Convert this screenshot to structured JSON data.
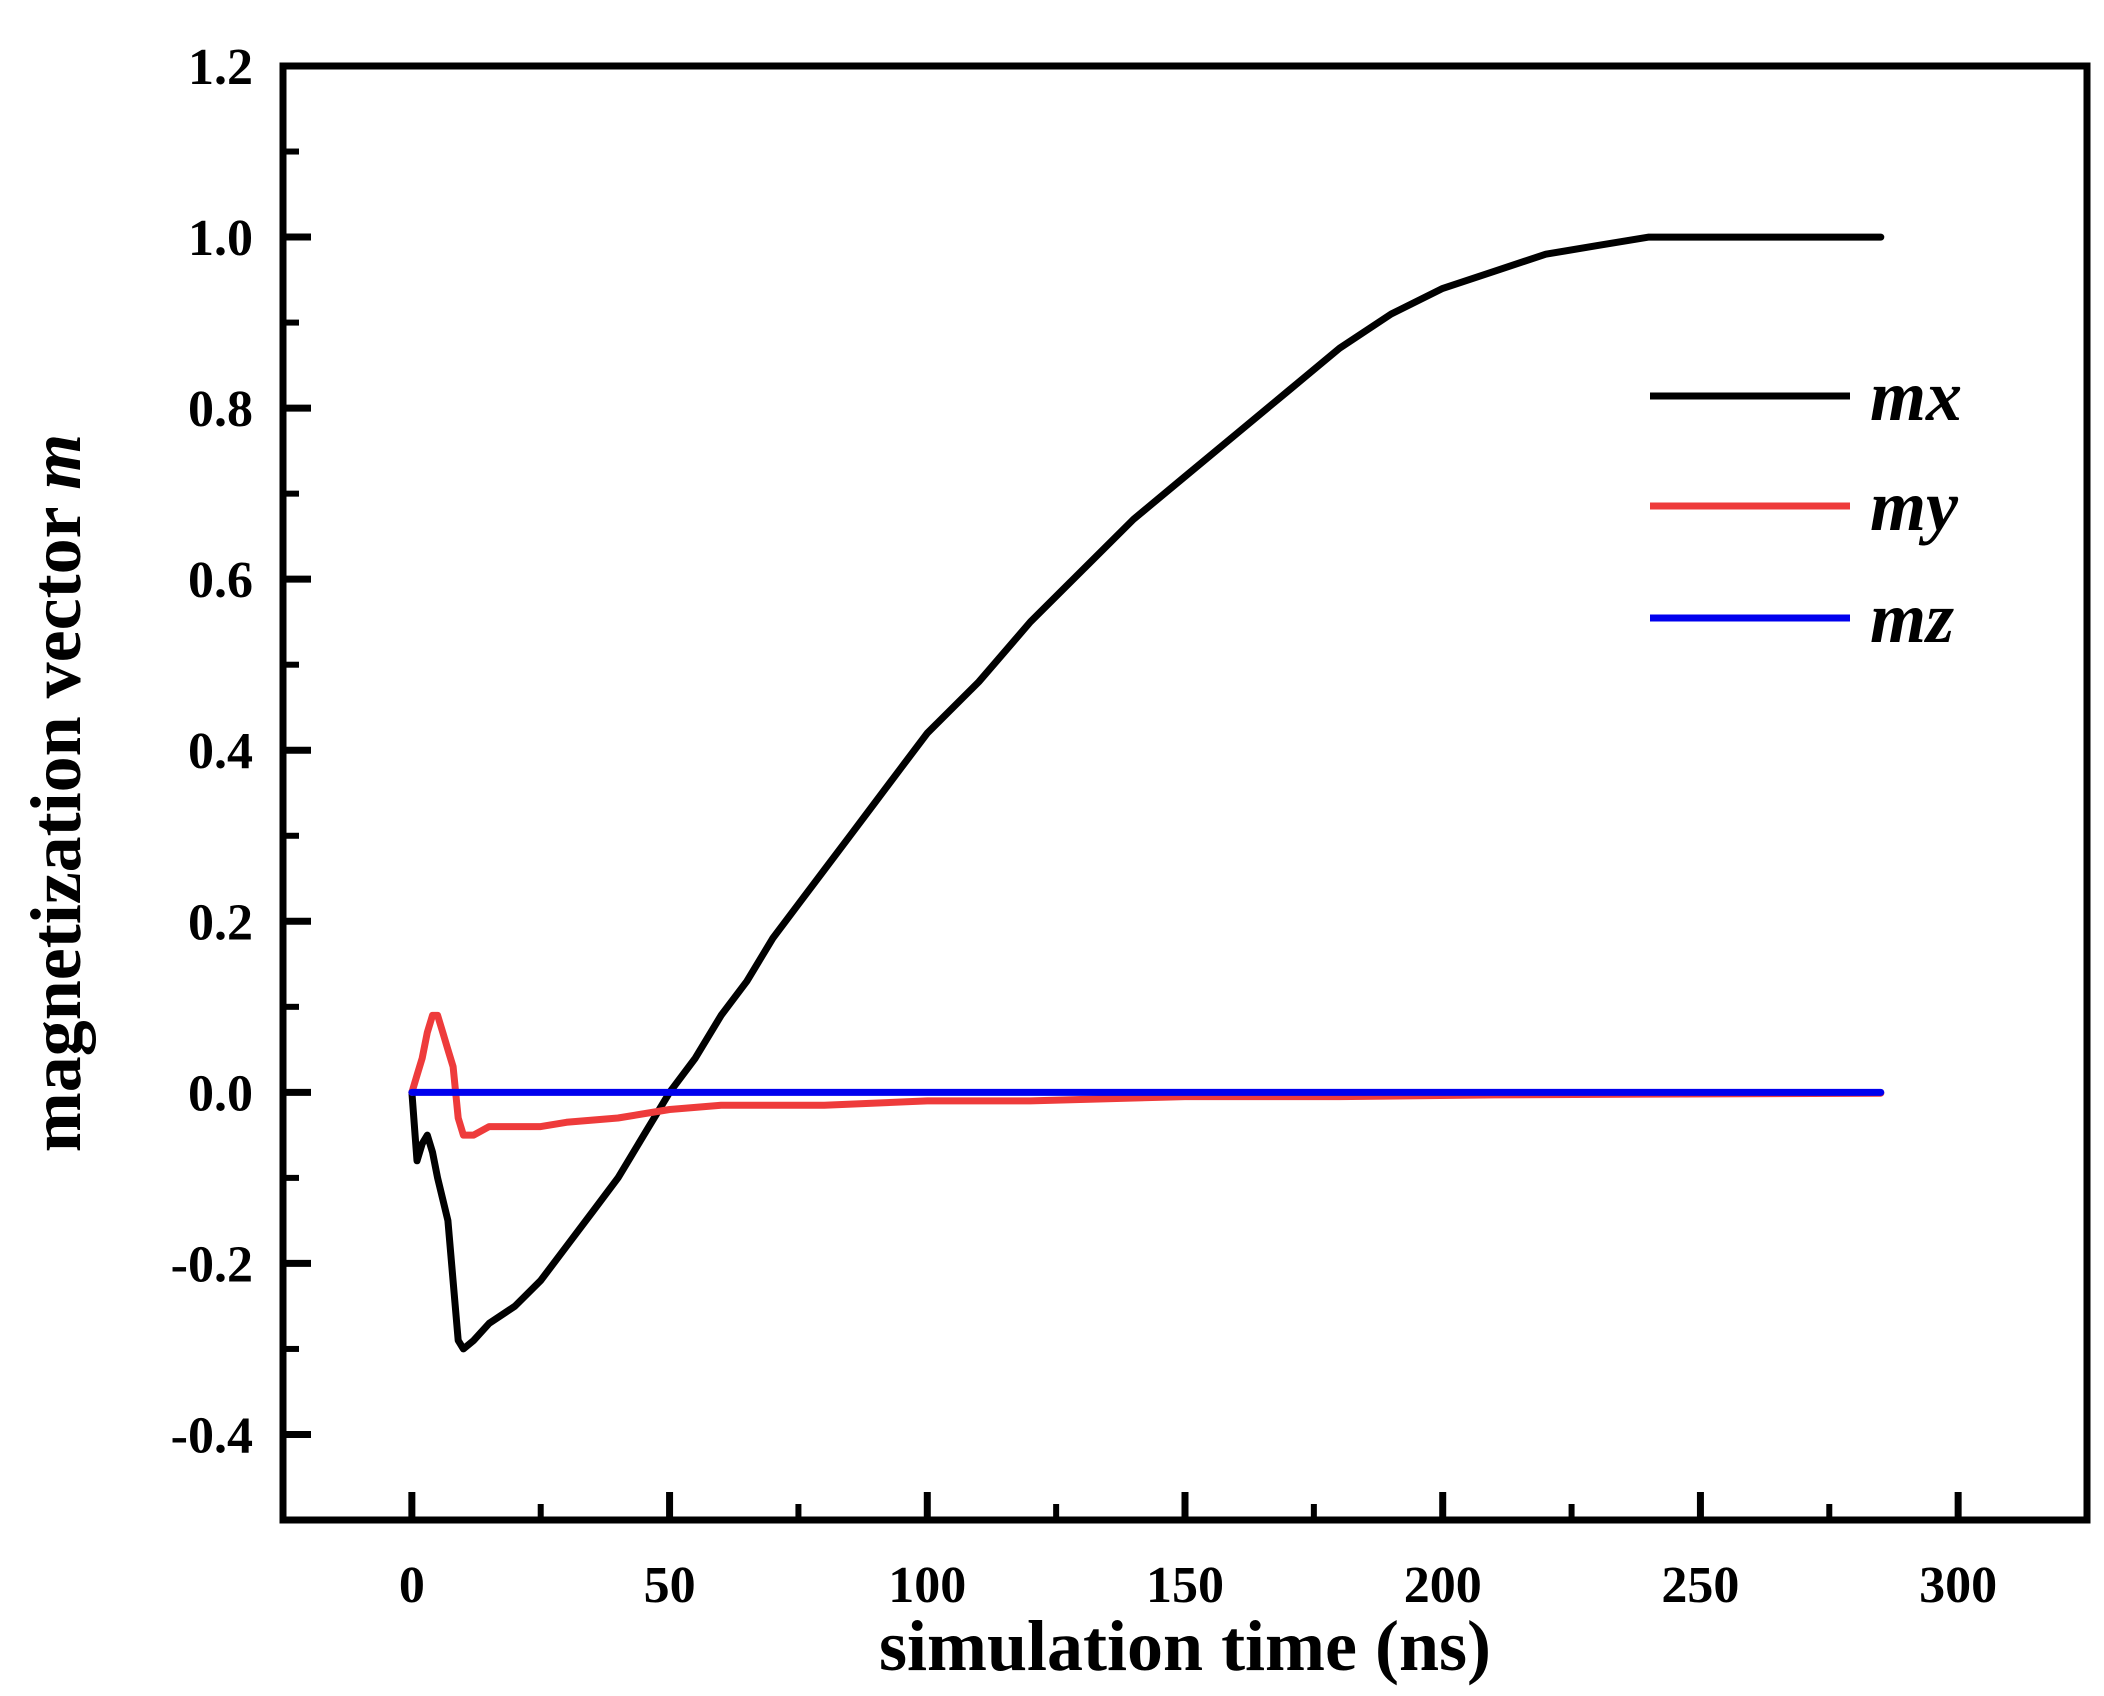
{
  "chart_data": {
    "type": "line",
    "title": "",
    "xlabel": "simulation time (ns)",
    "ylabel": "magnetization vector ",
    "ylabel_symbol": "m",
    "xlim": [
      -25,
      325
    ],
    "ylim": [
      -0.5,
      1.2
    ],
    "xticks": [
      0,
      50,
      100,
      150,
      200,
      250,
      300
    ],
    "xtick_labels": [
      "0",
      "50",
      "100",
      "150",
      "200",
      "250",
      "300"
    ],
    "yticks": [
      -0.4,
      -0.2,
      0.0,
      0.2,
      0.4,
      0.6,
      0.8,
      1.0,
      1.2
    ],
    "ytick_labels": [
      "-0.4",
      "-0.2",
      "0.0",
      "0.2",
      "0.4",
      "0.6",
      "0.8",
      "1.0",
      "1.2"
    ],
    "grid": false,
    "legend_position": "top-right",
    "series": [
      {
        "name": "mx",
        "color": "#000000",
        "x": [
          0,
          1,
          2,
          3,
          4,
          5,
          7,
          9,
          10,
          12,
          15,
          20,
          25,
          30,
          35,
          40,
          45,
          50,
          55,
          60,
          65,
          70,
          75,
          80,
          85,
          90,
          95,
          100,
          110,
          120,
          130,
          140,
          150,
          160,
          170,
          180,
          190,
          200,
          210,
          220,
          230,
          240,
          245,
          250,
          260,
          270,
          285
        ],
        "y": [
          0.0,
          -0.08,
          -0.06,
          -0.05,
          -0.07,
          -0.1,
          -0.15,
          -0.29,
          -0.3,
          -0.29,
          -0.27,
          -0.25,
          -0.22,
          -0.18,
          -0.14,
          -0.1,
          -0.05,
          0.0,
          0.04,
          0.09,
          0.13,
          0.18,
          0.22,
          0.26,
          0.3,
          0.34,
          0.38,
          0.42,
          0.48,
          0.55,
          0.61,
          0.67,
          0.72,
          0.77,
          0.82,
          0.87,
          0.91,
          0.94,
          0.96,
          0.98,
          0.99,
          1.0,
          1.0,
          1.0,
          1.0,
          1.0,
          1.0
        ]
      },
      {
        "name": "my",
        "color": "#ee3b3b",
        "x": [
          0,
          1,
          2,
          3,
          4,
          5,
          6,
          7,
          8,
          9,
          10,
          12,
          15,
          20,
          25,
          30,
          40,
          50,
          60,
          80,
          100,
          120,
          150,
          180,
          210,
          240,
          285
        ],
        "y": [
          0.0,
          0.02,
          0.04,
          0.07,
          0.09,
          0.09,
          0.07,
          0.05,
          0.03,
          -0.03,
          -0.05,
          -0.05,
          -0.04,
          -0.04,
          -0.04,
          -0.035,
          -0.03,
          -0.02,
          -0.015,
          -0.015,
          -0.01,
          -0.01,
          -0.005,
          -0.005,
          -0.003,
          -0.002,
          -0.001
        ]
      },
      {
        "name": "mz",
        "color": "#0000ee",
        "x": [
          0,
          285
        ],
        "y": [
          0.0,
          0.0
        ]
      }
    ]
  }
}
